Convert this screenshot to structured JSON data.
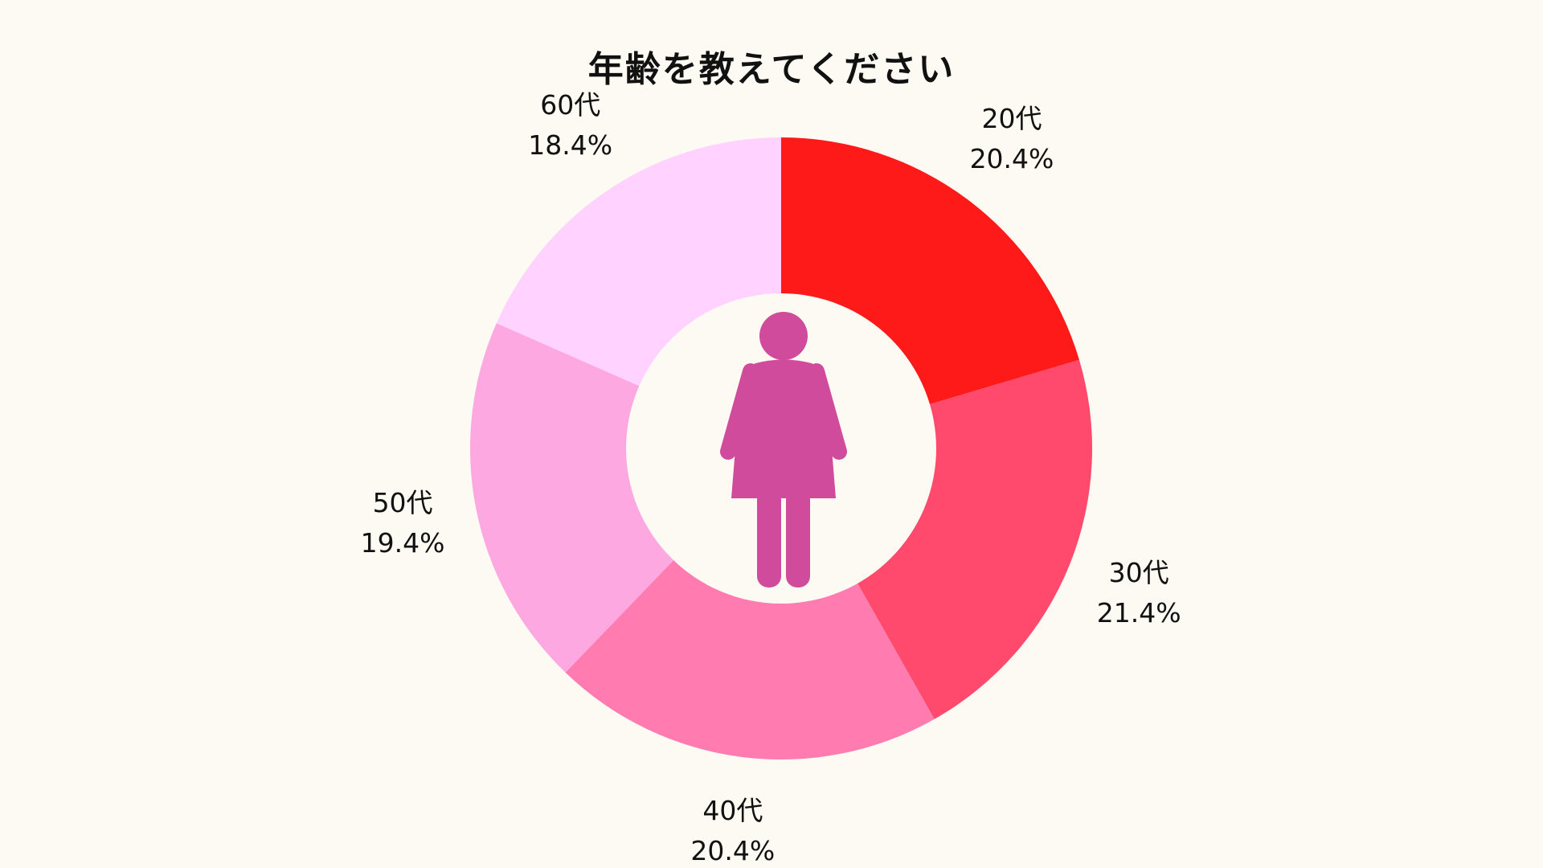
{
  "chart_data": {
    "type": "pie",
    "title": "年齢を教えてください",
    "slices": [
      {
        "label": "20代",
        "value": 20.4,
        "value_text": "20.4%",
        "color": "#FF1A1A"
      },
      {
        "label": "30代",
        "value": 21.4,
        "value_text": "21.4%",
        "color": "#FF4A6E"
      },
      {
        "label": "40代",
        "value": 20.4,
        "value_text": "20.4%",
        "color": "#FF7BB0"
      },
      {
        "label": "50代",
        "value": 19.4,
        "value_text": "19.4%",
        "color": "#FDA8E0"
      },
      {
        "label": "60代",
        "value": 18.4,
        "value_text": "18.4%",
        "color": "#FFD2FF"
      }
    ],
    "donut": true,
    "center_icon": "woman-icon",
    "center_icon_color": "#D14B9C",
    "center_fill": "#FDF9F3",
    "background": "#FDF9F3",
    "start_angle": "12 o'clock",
    "direction": "clockwise"
  }
}
